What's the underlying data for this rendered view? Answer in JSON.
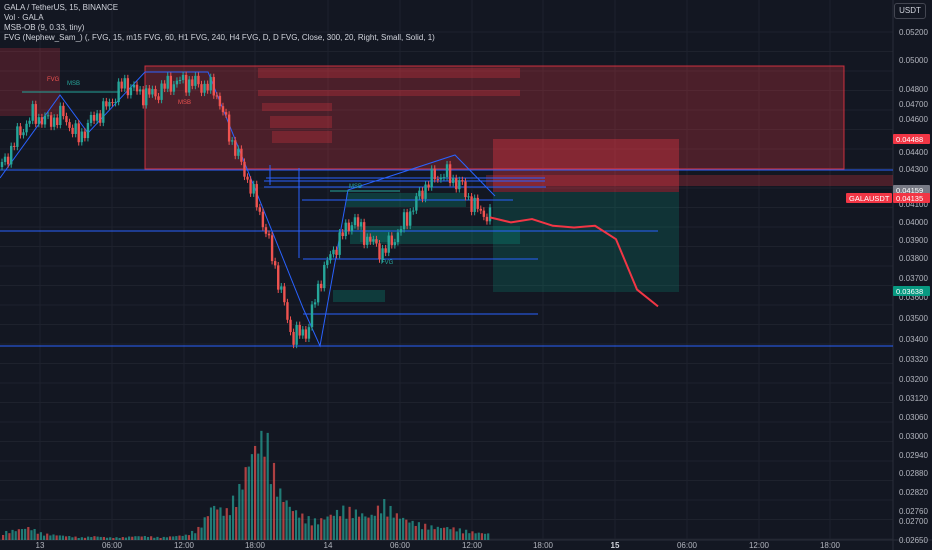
{
  "header": {
    "symbol_line": "GALA / TetherUS, 15, BINANCE",
    "volume_line": "Vol · GALA",
    "indicator_msb": "MSB-OB (9, 0.33, tiny)",
    "indicator_fvg": "FVG (Nephew_Sam_) (, FVG, 15, m15 FVG, 60, H1 FVG, 240, H4 FVG, D, D FVG, Close, 300, 20, Right, Small, Solid, 1)",
    "currency": "USDT"
  },
  "colors": {
    "background": "#131722",
    "up": "#26a69a",
    "down": "#ef5350",
    "line_blue": "#2962ff",
    "projection": "#f23645",
    "supply_zone": "#f23645",
    "demand_zone": "#089981"
  },
  "price_badges": [
    {
      "text": "0.04488",
      "color": "#f23645",
      "value": 0.04488
    },
    {
      "text": "0.04159",
      "color": "#787b86",
      "value": 0.04159
    },
    {
      "text": "GALAUSDT",
      "color": "#f23645",
      "value": 0.04135
    },
    {
      "text": "0.04135",
      "color": "#f23645",
      "value": 0.04135
    },
    {
      "text": "0.03638",
      "color": "#089981",
      "value": 0.03638
    }
  ],
  "annotations": [
    {
      "text": "MSB",
      "color": "#26a69a"
    },
    {
      "text": "MSB",
      "color": "#ef5350"
    },
    {
      "text": "MSB",
      "color": "#26a69a"
    },
    {
      "text": "FVG",
      "color": "#ef5350"
    },
    {
      "text": "FVG",
      "color": "#26a69a"
    }
  ],
  "chart_data": {
    "type": "candlestick",
    "symbol": "GALA / TetherUS",
    "interval": "15",
    "exchange": "BINANCE",
    "y_ticks": [
      "0.05200",
      "0.05000",
      "0.04800",
      "0.04700",
      "0.04600",
      "0.04400",
      "0.04300",
      "0.04100",
      "0.04000",
      "0.03900",
      "0.03800",
      "0.03700",
      "0.03600",
      "0.03500",
      "0.03400",
      "0.03320",
      "0.03200",
      "0.03120",
      "0.03060",
      "0.03000",
      "0.02940",
      "0.02880",
      "0.02820",
      "0.02760",
      "0.02700",
      "0.02650",
      "0.02598"
    ],
    "x_ticks": [
      "13",
      "06:00",
      "12:00",
      "18:00",
      "14",
      "06:00",
      "12:00",
      "18:00",
      "15",
      "06:00",
      "12:00",
      "18:00"
    ],
    "price_range": [
      0.033,
      0.0525
    ],
    "close_path": [
      0.0443,
      0.0461,
      0.0474,
      0.047,
      0.0474,
      0.046,
      0.0472,
      0.048,
      0.0493,
      0.0487,
      0.0486,
      0.0493,
      0.0494,
      0.0492,
      0.0489,
      0.046,
      0.0438,
      0.0414,
      0.038,
      0.0342,
      0.0345,
      0.038,
      0.0398,
      0.0412,
      0.04,
      0.0392,
      0.0404,
      0.042,
      0.0435,
      0.0439,
      0.0433,
      0.0419,
      0.0413
    ],
    "projection_path": [
      0.0413,
      0.041,
      0.0412,
      0.0408,
      0.0407,
      0.0408,
      0.04,
      0.037,
      0.036
    ],
    "volume_profile": [
      6,
      8,
      10,
      5,
      4,
      3,
      2,
      3,
      2,
      2,
      3,
      3,
      2,
      3,
      4,
      10,
      28,
      22,
      40,
      70,
      85,
      40,
      25,
      18,
      15,
      20,
      25,
      22,
      18,
      30,
      20,
      15,
      12,
      10,
      10,
      8,
      6,
      5
    ]
  }
}
